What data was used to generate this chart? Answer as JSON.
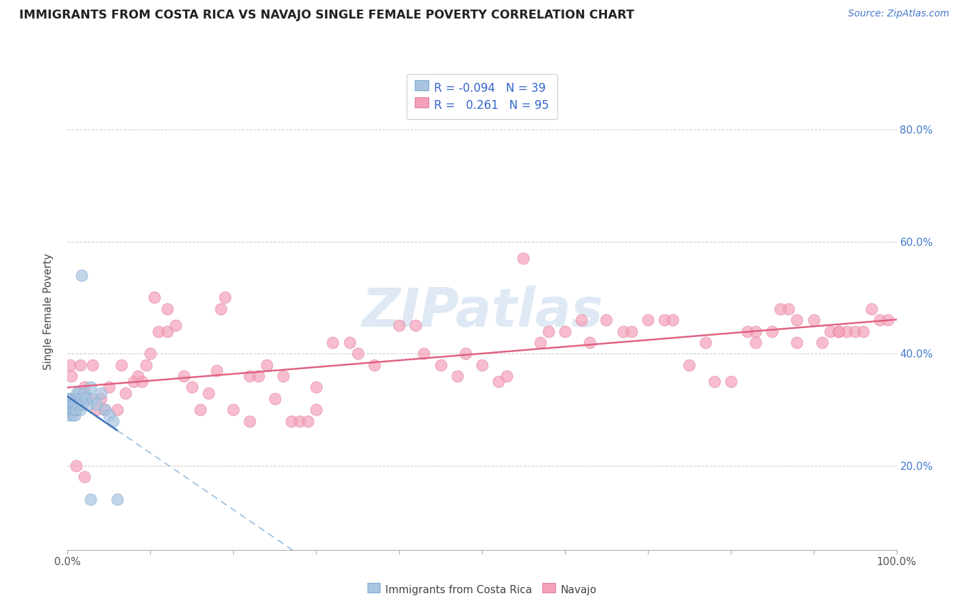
{
  "title": "IMMIGRANTS FROM COSTA RICA VS NAVAJO SINGLE FEMALE POVERTY CORRELATION CHART",
  "source": "Source: ZipAtlas.com",
  "ylabel": "Single Female Poverty",
  "xlim": [
    0,
    100
  ],
  "ylim": [
    5,
    90
  ],
  "legend1_r": "-0.094",
  "legend1_n": "39",
  "legend2_r": "0.261",
  "legend2_n": "95",
  "watermark": "ZIPatlas",
  "blue_color": "#aac4e0",
  "blue_edge": "#7aaad0",
  "pink_color": "#f4a0b8",
  "pink_edge": "#e080a0",
  "blue_line_solid_color": "#4477bb",
  "blue_line_dash_color": "#99bbdd",
  "pink_line_color": "#e06080",
  "background_color": "#ffffff",
  "grid_color": "#cccccc",
  "blue_scatter_x": [
    0.1,
    0.15,
    0.2,
    0.25,
    0.3,
    0.35,
    0.4,
    0.45,
    0.5,
    0.55,
    0.6,
    0.65,
    0.7,
    0.75,
    0.8,
    0.85,
    0.9,
    0.95,
    1.0,
    1.1,
    1.2,
    1.3,
    1.4,
    1.5,
    1.6,
    1.8,
    2.0,
    2.2,
    2.5,
    2.8,
    3.0,
    3.5,
    4.0,
    4.5,
    5.0,
    5.5,
    1.7,
    2.8,
    6.0
  ],
  "blue_scatter_y": [
    30,
    31,
    29,
    32,
    30,
    31,
    32,
    30,
    31,
    30,
    29,
    31,
    32,
    30,
    31,
    29,
    30,
    31,
    30,
    33,
    32,
    31,
    33,
    30,
    32,
    31,
    33,
    32,
    31,
    34,
    32,
    31,
    33,
    30,
    29,
    28,
    54,
    14,
    14
  ],
  "pink_scatter_x": [
    0.3,
    0.5,
    0.8,
    1.2,
    1.5,
    1.8,
    2.0,
    2.5,
    3.0,
    3.5,
    4.0,
    4.5,
    5.0,
    6.0,
    7.0,
    8.0,
    9.0,
    10.0,
    11.0,
    12.0,
    14.0,
    15.0,
    16.0,
    17.0,
    18.0,
    20.0,
    22.0,
    24.0,
    25.0,
    26.0,
    27.0,
    28.0,
    30.0,
    32.0,
    35.0,
    37.0,
    40.0,
    42.0,
    45.0,
    47.0,
    50.0,
    52.0,
    55.0,
    57.0,
    60.0,
    62.0,
    65.0,
    67.0,
    70.0,
    72.0,
    75.0,
    77.0,
    78.0,
    80.0,
    82.0,
    83.0,
    85.0,
    87.0,
    88.0,
    90.0,
    91.0,
    92.0,
    93.0,
    94.0,
    95.0,
    96.0,
    97.0,
    98.0,
    99.0,
    1.0,
    2.0,
    8.5,
    13.0,
    19.0,
    23.0,
    29.0,
    34.0,
    43.0,
    48.0,
    53.0,
    63.0,
    68.0,
    73.0,
    83.0,
    88.0,
    93.0,
    9.5,
    18.5,
    30.0,
    12.0,
    22.0,
    58.0,
    86.0,
    10.5,
    6.5
  ],
  "pink_scatter_y": [
    38,
    36,
    30,
    32,
    38,
    32,
    34,
    32,
    38,
    30,
    32,
    30,
    34,
    30,
    33,
    35,
    35,
    40,
    44,
    44,
    36,
    34,
    30,
    33,
    37,
    30,
    36,
    38,
    32,
    36,
    28,
    28,
    34,
    42,
    40,
    38,
    45,
    45,
    38,
    36,
    38,
    35,
    57,
    42,
    44,
    46,
    46,
    44,
    46,
    46,
    38,
    42,
    35,
    35,
    44,
    44,
    44,
    48,
    42,
    46,
    42,
    44,
    44,
    44,
    44,
    44,
    48,
    46,
    46,
    20,
    18,
    36,
    45,
    50,
    36,
    28,
    42,
    40,
    40,
    36,
    42,
    44,
    46,
    42,
    46,
    44,
    38,
    48,
    30,
    48,
    28,
    44,
    48,
    50,
    38
  ],
  "blue_data_xmax": 6.0
}
